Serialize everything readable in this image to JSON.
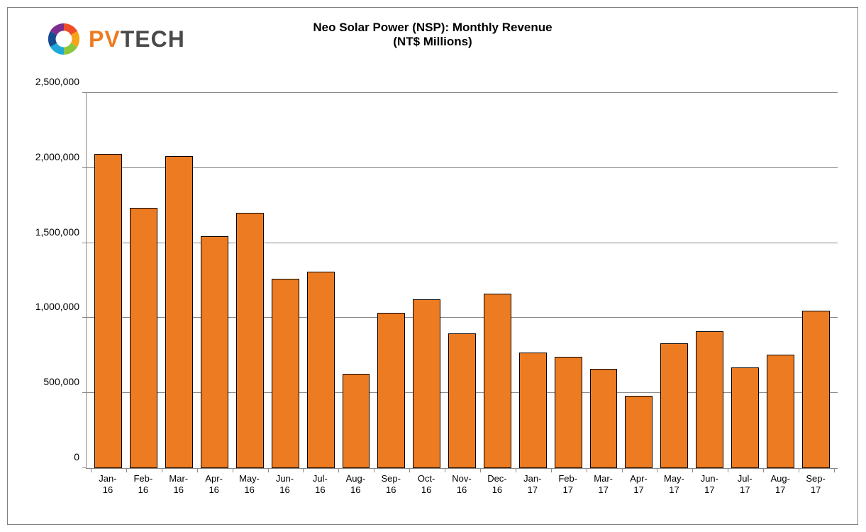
{
  "logo": {
    "pv_text": "PV",
    "tech_text": "TECH",
    "pv_color": "#ed7b22",
    "tech_color": "#4a4a4a",
    "swirl_colors": [
      "#f04e2a",
      "#f7a31a",
      "#8cc63f",
      "#1fa8d8",
      "#164b8f",
      "#7b2e8e"
    ]
  },
  "chart": {
    "type": "bar",
    "title_line1": "Neo Solar Power (NSP): Monthly Revenue",
    "title_line2": "(NT$ Millions)",
    "title_fontsize": 17,
    "title_fontweight": 700,
    "ylim": [
      0,
      2500000
    ],
    "ytick_step": 500000,
    "y_tick_labels": [
      "0",
      "500,000",
      "1,000,000",
      "1,500,000",
      "2,000,000",
      "2,500,000"
    ],
    "grid_color": "#888888",
    "background_color": "#ffffff",
    "bar_fill_color": "#ed7b22",
    "bar_border_color": "#000000",
    "bar_width_ratio": 0.78,
    "label_fontsize": 14,
    "xlabel_fontsize": 13,
    "categories": [
      {
        "line1": "Jan-",
        "line2": "16"
      },
      {
        "line1": "Feb-",
        "line2": "16"
      },
      {
        "line1": "Mar-",
        "line2": "16"
      },
      {
        "line1": "Apr-",
        "line2": "16"
      },
      {
        "line1": "May-",
        "line2": "16"
      },
      {
        "line1": "Jun-",
        "line2": "16"
      },
      {
        "line1": "Jul-",
        "line2": "16"
      },
      {
        "line1": "Aug-",
        "line2": "16"
      },
      {
        "line1": "Sep-",
        "line2": "16"
      },
      {
        "line1": "Oct-",
        "line2": "16"
      },
      {
        "line1": "Nov-",
        "line2": "16"
      },
      {
        "line1": "Dec-",
        "line2": "16"
      },
      {
        "line1": "Jan-",
        "line2": "17"
      },
      {
        "line1": "Feb-",
        "line2": "17"
      },
      {
        "line1": "Mar-",
        "line2": "17"
      },
      {
        "line1": "Apr-",
        "line2": "17"
      },
      {
        "line1": "May-",
        "line2": "17"
      },
      {
        "line1": "Jun-",
        "line2": "17"
      },
      {
        "line1": "Jul-",
        "line2": "17"
      },
      {
        "line1": "Aug-",
        "line2": "17"
      },
      {
        "line1": "Sep-",
        "line2": "17"
      }
    ],
    "values": [
      2095000,
      1735000,
      2080000,
      1545000,
      1700000,
      1260000,
      1310000,
      630000,
      1035000,
      1125000,
      900000,
      1165000,
      770000,
      740000,
      660000,
      482000,
      830000,
      910000,
      670000,
      755000,
      1050000
    ]
  }
}
